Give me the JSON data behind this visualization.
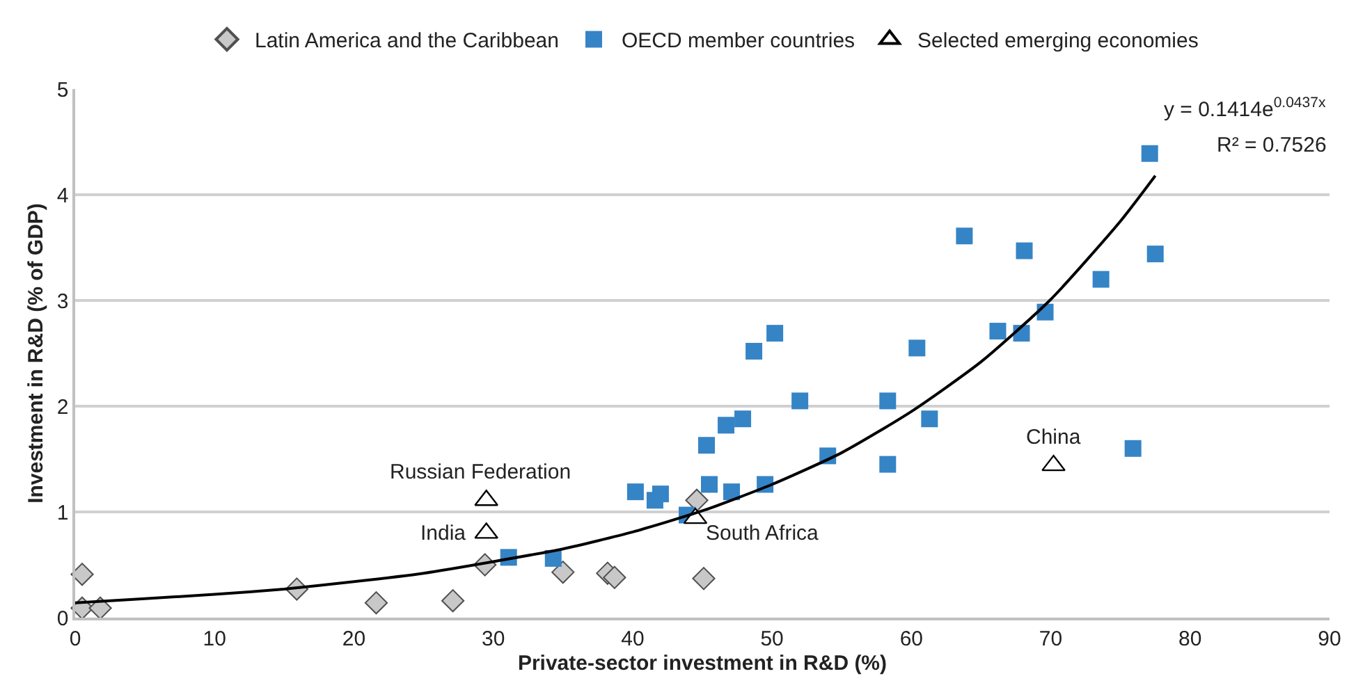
{
  "chart_data": {
    "type": "scatter",
    "xlabel": "Private-sector investment in R&D (%)",
    "ylabel": "Investment in R&D (% of GDP)",
    "xlim": [
      0,
      90
    ],
    "xticks": [
      0,
      10,
      20,
      30,
      40,
      50,
      60,
      70,
      80,
      90
    ],
    "ylim": [
      0,
      5
    ],
    "yticks": [
      0,
      1,
      2,
      3,
      4,
      5
    ],
    "grid": "y",
    "legend": "top",
    "series": [
      {
        "name": "Latin America and the Caribbean",
        "color": "#c8c8c8",
        "marker": "diamond",
        "x": [
          0.5,
          0.5,
          1.8,
          15.9,
          21.6,
          27.1,
          29.4,
          35.0,
          38.2,
          38.7,
          44.6,
          45.1
        ],
        "values": [
          0.41,
          0.09,
          0.09,
          0.27,
          0.14,
          0.16,
          0.5,
          0.43,
          0.42,
          0.38,
          1.11,
          0.37
        ]
      },
      {
        "name": "OECD member countries",
        "color": "#3584c6",
        "marker": "square",
        "x": [
          31.1,
          34.3,
          40.2,
          41.6,
          42.0,
          43.9,
          45.5,
          45.3,
          46.7,
          47.1,
          47.9,
          48.7,
          49.5,
          50.2,
          52.0,
          54.0,
          58.3,
          58.3,
          60.4,
          61.3,
          63.8,
          66.2,
          67.9,
          68.1,
          69.6,
          73.6,
          75.9,
          77.1,
          77.5
        ],
        "values": [
          0.57,
          0.56,
          1.19,
          1.11,
          1.17,
          0.97,
          1.26,
          1.63,
          1.82,
          1.19,
          1.88,
          2.52,
          1.26,
          2.69,
          2.05,
          1.53,
          2.05,
          1.45,
          2.55,
          1.88,
          3.61,
          2.71,
          2.69,
          3.47,
          2.89,
          3.2,
          1.6,
          4.39,
          3.44
        ]
      },
      {
        "name": "Selected emerging economies",
        "color": "#ffffff",
        "marker": "triangle",
        "x": [
          29.5,
          29.5,
          44.5,
          70.2
        ],
        "values": [
          1.11,
          0.8,
          0.94,
          1.44
        ]
      },
      {
        "type": "line",
        "color": "#000000",
        "marker": "none",
        "line_style": "solid",
        "x": [
          0,
          5,
          10,
          15,
          20,
          25,
          30,
          35,
          40,
          45,
          50,
          55,
          60,
          65,
          70,
          75,
          77.5
        ],
        "values": [
          0.14,
          0.18,
          0.22,
          0.27,
          0.34,
          0.42,
          0.53,
          0.65,
          0.81,
          1.01,
          1.26,
          1.56,
          1.95,
          2.42,
          3.01,
          3.75,
          4.18
        ]
      }
    ],
    "annotations": [
      {
        "text": "Russian Federation",
        "x": 29.5,
        "y": 1.11
      },
      {
        "text": "India",
        "x": 29.5,
        "y": 0.8
      },
      {
        "text": "South Africa",
        "x": 44.5,
        "y": 0.94
      },
      {
        "text": "China",
        "x": 70.2,
        "y": 1.44
      },
      "y = 0.1414e$^{0.0437x}$",
      "R² = 0.7526"
    ]
  }
}
